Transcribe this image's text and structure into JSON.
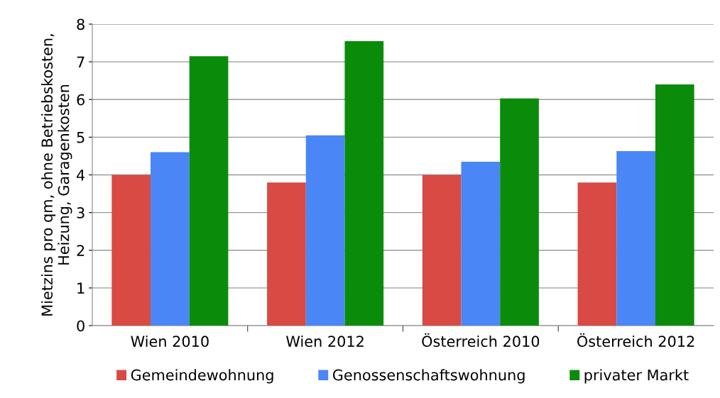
{
  "chart_data": {
    "type": "bar",
    "ylabel": "Mietzins pro qm, ohne Betriebskosten,\nHeizung, Garagenkosten",
    "categories": [
      "Wien 2010",
      "Wien 2012",
      "Österreich 2010",
      "Österreich 2012"
    ],
    "series": [
      {
        "name": "Gemeindewohnung",
        "color": "#d84a43",
        "values": [
          4.0,
          3.8,
          4.0,
          3.8
        ]
      },
      {
        "name": "Genossenschaftswohnung",
        "color": "#4a86f5",
        "values": [
          4.6,
          5.05,
          4.35,
          4.63
        ]
      },
      {
        "name": "privater Markt",
        "color": "#0a8c0a",
        "values": [
          7.15,
          7.55,
          6.03,
          6.4
        ]
      }
    ],
    "ylim": [
      0,
      8
    ],
    "yticks": [
      0,
      1,
      2,
      3,
      4,
      5,
      6,
      7,
      8
    ],
    "grid": "y",
    "legend": "bottom"
  }
}
